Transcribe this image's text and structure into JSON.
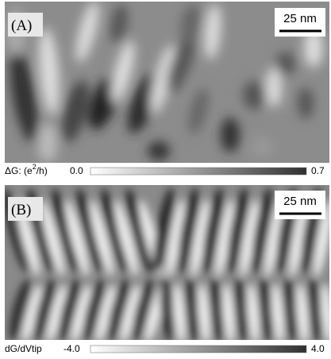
{
  "panels": [
    {
      "label": "(A)",
      "scale_bar": "25 nm",
      "colorbar": {
        "label_prefix": "ΔG: (e",
        "label_sup": "2",
        "label_suffix": "/h)",
        "min": "0.0",
        "max": "0.7"
      }
    },
    {
      "label": "(B)",
      "scale_bar": "25 nm",
      "colorbar": {
        "label_prefix": "dG/dVtip",
        "min": "-4.0",
        "max": "4.0"
      }
    }
  ]
}
